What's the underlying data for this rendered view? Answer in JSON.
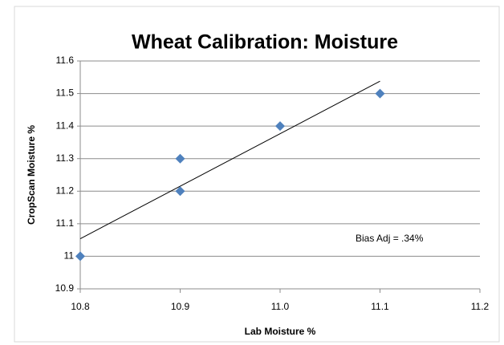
{
  "chart_data": {
    "type": "scatter",
    "title": "Wheat Calibration: Moisture",
    "x_label": "Lab Moisture %",
    "y_label": "CropScan Moisture %",
    "series": [
      {
        "color": "#4f81bd",
        "x": [
          10.8,
          10.9,
          10.9,
          11.0,
          11.1
        ],
        "values": [
          11.0,
          11.3,
          11.2,
          11.4,
          11.5
        ]
      }
    ],
    "trendline": {
      "color": "#000000",
      "x": [
        10.8,
        11.1
      ],
      "values": [
        11.054,
        11.538
      ]
    },
    "annotation": "Bias Adj  = .34%",
    "xlim": [
      10.8,
      11.2
    ],
    "xticks": [
      10.8,
      10.9,
      {
        "value": 11,
        "label": "11.0"
      },
      11.1,
      11.2
    ],
    "ylim": [
      10.9,
      11.6
    ],
    "yticks": [
      10.9,
      11,
      11.1,
      11.2,
      11.3,
      11.4,
      11.5,
      11.6
    ],
    "grid": true
  }
}
